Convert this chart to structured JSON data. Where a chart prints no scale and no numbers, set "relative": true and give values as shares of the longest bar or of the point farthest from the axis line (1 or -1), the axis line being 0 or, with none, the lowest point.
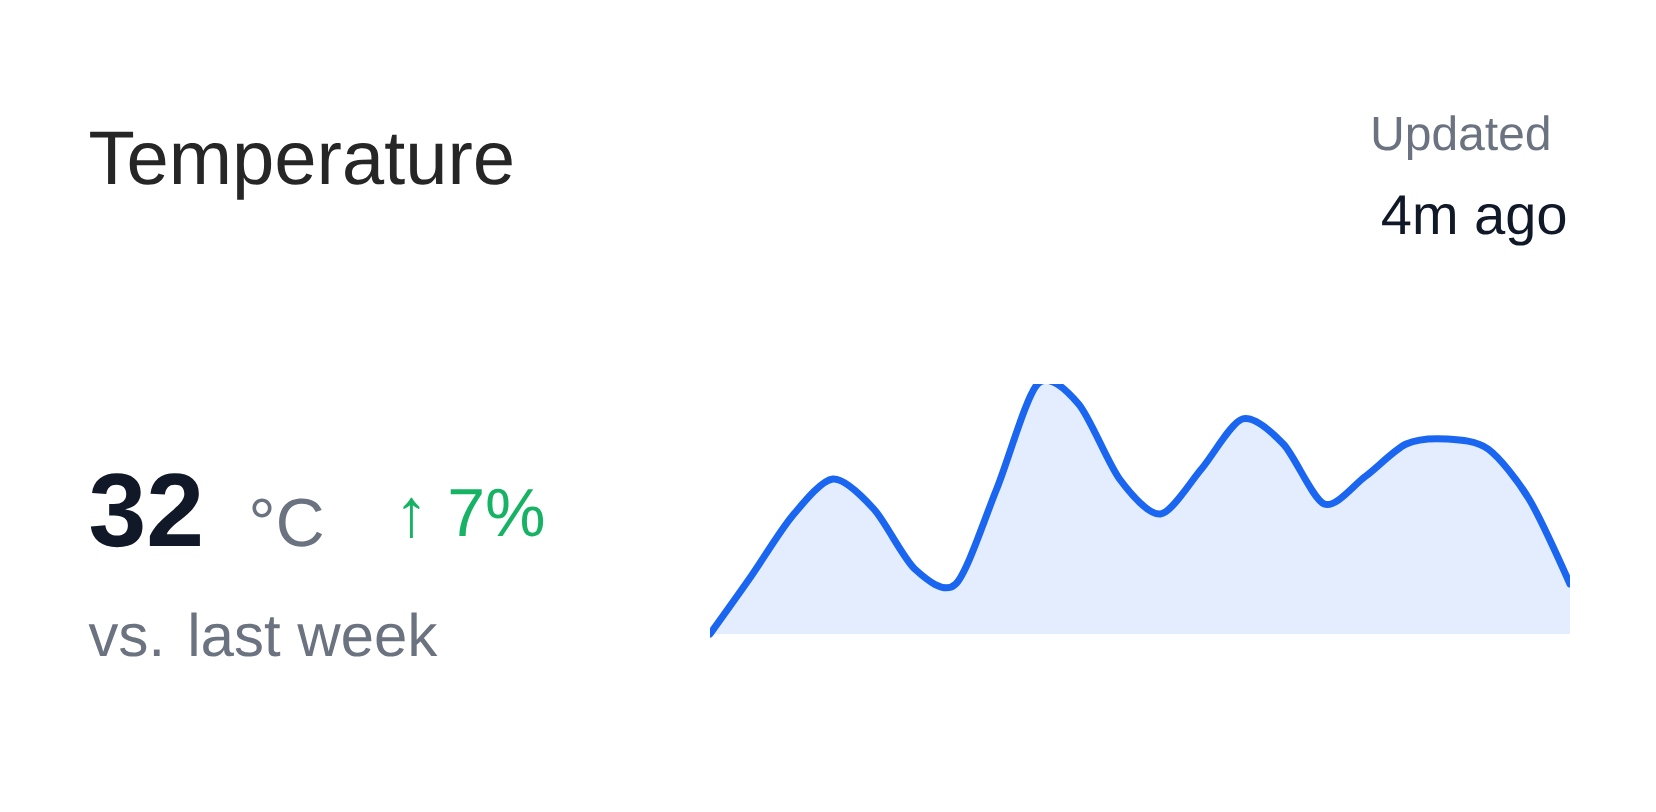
{
  "chart_data": {
    "type": "area",
    "title": "Temperature",
    "relative": true,
    "categories": [
      null,
      null,
      null,
      null,
      null,
      null,
      null,
      null,
      null,
      null,
      null,
      null,
      null,
      null,
      null,
      null,
      null,
      null,
      null,
      null,
      null,
      null
    ],
    "series": [
      {
        "color": "#1a66f0",
        "values": [
          0,
          0.23,
          0.47,
          0.62,
          0.5,
          0.26,
          0.2,
          0.58,
          1.0,
          0.92,
          0.62,
          0.48,
          0.66,
          0.86,
          0.76,
          0.52,
          0.63,
          0.76,
          0.78,
          0.74,
          0.54,
          0.2
        ]
      }
    ],
    "annotations": [
      "Updated",
      "4m ago",
      "32",
      "°C",
      "↑ 7%",
      "vs. last week"
    ]
  }
}
